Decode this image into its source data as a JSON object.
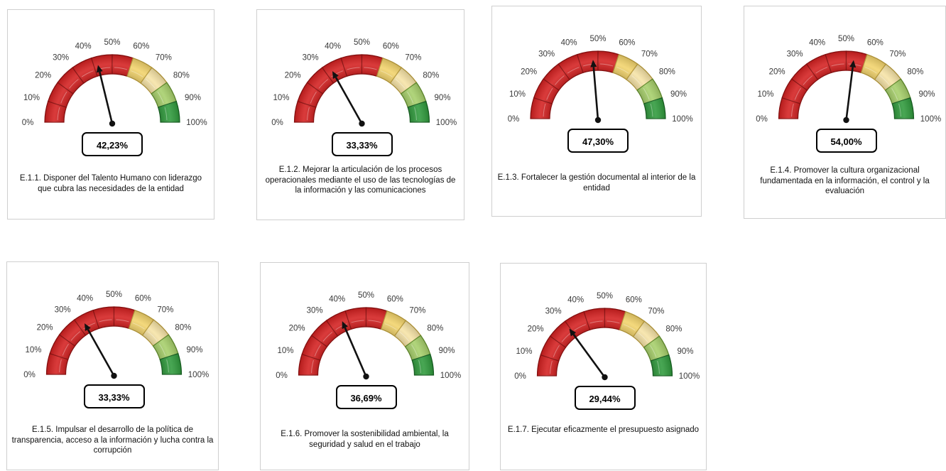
{
  "chart_data": [
    {
      "type": "gauge",
      "value": 42.23,
      "range": [
        0,
        100
      ],
      "value_label": "42,23%",
      "ticks": [
        "0%",
        "10%",
        "20%",
        "30%",
        "40%",
        "50%",
        "60%",
        "70%",
        "80%",
        "90%",
        "100%"
      ],
      "caption": "E.1.1. Disponer del Talento Humano con liderazgo que cubra las necesidades de la entidad"
    },
    {
      "type": "gauge",
      "value": 33.33,
      "range": [
        0,
        100
      ],
      "value_label": "33,33%",
      "ticks": [
        "0%",
        "10%",
        "20%",
        "30%",
        "40%",
        "50%",
        "60%",
        "70%",
        "80%",
        "90%",
        "100%"
      ],
      "caption": "E.1.2. Mejorar la articulación de los procesos operacionales mediante el uso de las tecnologías de la información y las comunicaciones"
    },
    {
      "type": "gauge",
      "value": 47.3,
      "range": [
        0,
        100
      ],
      "value_label": "47,30%",
      "ticks": [
        "0%",
        "10%",
        "20%",
        "30%",
        "40%",
        "50%",
        "60%",
        "70%",
        "80%",
        "90%",
        "100%"
      ],
      "caption": "E.1.3. Fortalecer la gestión documental al interior de la entidad"
    },
    {
      "type": "gauge",
      "value": 54.0,
      "range": [
        0,
        100
      ],
      "value_label": "54,00%",
      "ticks": [
        "0%",
        "10%",
        "20%",
        "30%",
        "40%",
        "50%",
        "60%",
        "70%",
        "80%",
        "90%",
        "100%"
      ],
      "caption": "E.1.4. Promover la cultura organizacional fundamentada en la información, el control y la evaluación"
    },
    {
      "type": "gauge",
      "value": 33.33,
      "range": [
        0,
        100
      ],
      "value_label": "33,33%",
      "ticks": [
        "0%",
        "10%",
        "20%",
        "30%",
        "40%",
        "50%",
        "60%",
        "70%",
        "80%",
        "90%",
        "100%"
      ],
      "caption": "E.1.5. Impulsar el desarrollo de la política de transparencia, acceso a la información y lucha contra la corrupción"
    },
    {
      "type": "gauge",
      "value": 36.69,
      "range": [
        0,
        100
      ],
      "value_label": "36,69%",
      "ticks": [
        "0%",
        "10%",
        "20%",
        "30%",
        "40%",
        "50%",
        "60%",
        "70%",
        "80%",
        "90%",
        "100%"
      ],
      "caption": "E.1.6. Promover la sostenibilidad ambiental, la seguridad y salud en el trabajo"
    },
    {
      "type": "gauge",
      "value": 29.44,
      "range": [
        0,
        100
      ],
      "value_label": "29,44%",
      "ticks": [
        "0%",
        "10%",
        "20%",
        "30%",
        "40%",
        "50%",
        "60%",
        "70%",
        "80%",
        "90%",
        "100%"
      ],
      "caption": "E.1.7. Ejecutar eficazmente el presupuesto asignado"
    }
  ],
  "band_colors": {
    "red": "#d42020",
    "yellow": "#f2d36b",
    "light_yellow": "#f6e3a6",
    "light_green": "#a6cf6a",
    "green": "#2f9a3c"
  },
  "needle_color": "#111111"
}
